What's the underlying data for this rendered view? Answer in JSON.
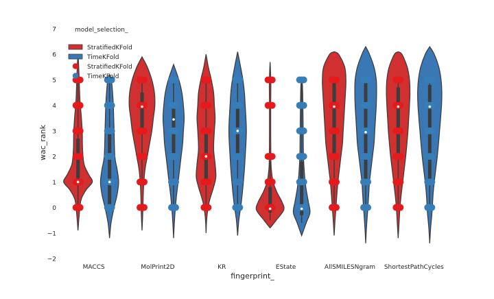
{
  "chart_data": {
    "type": "violin",
    "xlabel": "fingerprint_",
    "ylabel": "wac_rank",
    "ylim": [
      -2,
      7
    ],
    "yticks": [
      -2,
      -1,
      0,
      1,
      2,
      3,
      4,
      5,
      6,
      7
    ],
    "grid": false,
    "legend_position": "top-left",
    "legend": {
      "title": "model_selection_",
      "entries": [
        {
          "label": "StratifiedKFold",
          "marker": "patch",
          "color": "#d0302f"
        },
        {
          "label": "TimeKFold",
          "marker": "patch",
          "color": "#3a78b5"
        },
        {
          "label": "StratifiedKFold",
          "marker": "dot",
          "color": "#e41a1c"
        },
        {
          "label": "TimeKFold",
          "marker": "dot",
          "color": "#377eb8"
        }
      ]
    },
    "categories": [
      "MACCS",
      "MolPrint2D",
      "KR",
      "EState",
      "AllSMILESNgram",
      "ShortestPathCycles"
    ],
    "series": [
      {
        "name": "StratifiedKFold",
        "fill": "#d0302f",
        "point_color": "#e41a1c",
        "violins": [
          {
            "min": -0.9,
            "max": 6.0,
            "q1": 1.0,
            "median": 1.0,
            "q3": 2.7,
            "whisker_low": 0,
            "whisker_high": 5,
            "profile": [
              [
                -0.9,
                0
              ],
              [
                -0.3,
                0.08
              ],
              [
                0.3,
                0.2
              ],
              [
                0.7,
                0.55
              ],
              [
                1.0,
                0.95
              ],
              [
                1.3,
                0.7
              ],
              [
                1.7,
                0.4
              ],
              [
                2.3,
                0.3
              ],
              [
                3.0,
                0.28
              ],
              [
                3.7,
                0.2
              ],
              [
                4.2,
                0.13
              ],
              [
                5.0,
                0.08
              ],
              [
                5.6,
                0.04
              ],
              [
                6.0,
                0
              ]
            ],
            "points": [
              0,
              1,
              2,
              3,
              4,
              5
            ]
          },
          {
            "min": -0.9,
            "max": 5.9,
            "q1": 3.0,
            "median": 3.95,
            "q3": 4.5,
            "whisker_low": 1,
            "whisker_high": 5,
            "profile": [
              [
                -0.9,
                0
              ],
              [
                -0.2,
                0.05
              ],
              [
                0.5,
                0.08
              ],
              [
                1.0,
                0.12
              ],
              [
                1.5,
                0.2
              ],
              [
                2.0,
                0.35
              ],
              [
                2.5,
                0.5
              ],
              [
                3.0,
                0.65
              ],
              [
                3.5,
                0.75
              ],
              [
                4.0,
                0.85
              ],
              [
                4.5,
                0.82
              ],
              [
                5.0,
                0.65
              ],
              [
                5.5,
                0.35
              ],
              [
                5.9,
                0
              ]
            ],
            "points": [
              0,
              1,
              2,
              3,
              4,
              5
            ]
          },
          {
            "min": -1.0,
            "max": 6.0,
            "q1": 1.0,
            "median": 2.0,
            "q3": 3.0,
            "whisker_low": 0,
            "whisker_high": 5,
            "profile": [
              [
                -1.0,
                0
              ],
              [
                -0.4,
                0.05
              ],
              [
                0.2,
                0.2
              ],
              [
                0.8,
                0.5
              ],
              [
                1.2,
                0.65
              ],
              [
                1.7,
                0.6
              ],
              [
                2.3,
                0.5
              ],
              [
                3.0,
                0.55
              ],
              [
                3.5,
                0.6
              ],
              [
                4.0,
                0.55
              ],
              [
                4.5,
                0.5
              ],
              [
                5.0,
                0.35
              ],
              [
                5.5,
                0.15
              ],
              [
                6.0,
                0
              ]
            ],
            "points": [
              0,
              1,
              2,
              3,
              4,
              5
            ]
          },
          {
            "min": -0.8,
            "max": 5.7,
            "q1": -0.2,
            "median": -0.05,
            "q3": 0.8,
            "whisker_low": -0.5,
            "whisker_high": 1.8,
            "profile": [
              [
                -0.8,
                0
              ],
              [
                -0.5,
                0.4
              ],
              [
                -0.1,
                0.9
              ],
              [
                0.2,
                0.8
              ],
              [
                0.6,
                0.45
              ],
              [
                1.0,
                0.2
              ],
              [
                1.5,
                0.08
              ],
              [
                2.0,
                0.05
              ],
              [
                3.0,
                0.04
              ],
              [
                4.0,
                0.04
              ],
              [
                4.8,
                0.05
              ],
              [
                5.3,
                0.03
              ],
              [
                5.7,
                0
              ]
            ],
            "points": [
              0,
              1,
              2,
              4,
              5
            ]
          },
          {
            "min": -1.1,
            "max": 6.1,
            "q1": 2.0,
            "median": 3.95,
            "q3": 5.0,
            "whisker_low": 0,
            "whisker_high": 5,
            "profile": [
              [
                -1.1,
                0
              ],
              [
                -0.5,
                0.06
              ],
              [
                0,
                0.12
              ],
              [
                0.5,
                0.18
              ],
              [
                1.0,
                0.25
              ],
              [
                1.5,
                0.35
              ],
              [
                2.0,
                0.45
              ],
              [
                2.5,
                0.55
              ],
              [
                3.0,
                0.6
              ],
              [
                3.5,
                0.65
              ],
              [
                4.0,
                0.7
              ],
              [
                4.5,
                0.75
              ],
              [
                5.0,
                0.78
              ],
              [
                5.5,
                0.7
              ],
              [
                6.0,
                0.3
              ],
              [
                6.1,
                0
              ]
            ],
            "points": [
              0,
              1,
              2,
              3,
              4,
              5
            ]
          },
          {
            "min": -1.2,
            "max": 6.1,
            "q1": 2.0,
            "median": 3.95,
            "q3": 4.7,
            "whisker_low": 0,
            "whisker_high": 5,
            "profile": [
              [
                -1.2,
                0
              ],
              [
                -0.6,
                0.06
              ],
              [
                0,
                0.12
              ],
              [
                0.5,
                0.2
              ],
              [
                1.0,
                0.3
              ],
              [
                1.5,
                0.4
              ],
              [
                2.0,
                0.5
              ],
              [
                2.5,
                0.58
              ],
              [
                3.0,
                0.65
              ],
              [
                3.5,
                0.7
              ],
              [
                4.0,
                0.75
              ],
              [
                4.5,
                0.78
              ],
              [
                5.0,
                0.75
              ],
              [
                5.5,
                0.6
              ],
              [
                6.0,
                0.25
              ],
              [
                6.1,
                0
              ]
            ],
            "points": [
              0,
              1,
              2,
              3,
              4,
              5
            ]
          }
        ]
      },
      {
        "name": "TimeKFold",
        "fill": "#3a78b5",
        "point_color": "#377eb8",
        "violins": [
          {
            "min": -1.2,
            "max": 5.2,
            "q1": 0.0,
            "median": 1.0,
            "q3": 3.0,
            "whisker_low": 0,
            "whisker_high": 5,
            "profile": [
              [
                -1.2,
                0
              ],
              [
                -0.6,
                0.1
              ],
              [
                0,
                0.3
              ],
              [
                0.5,
                0.5
              ],
              [
                1.0,
                0.6
              ],
              [
                1.5,
                0.5
              ],
              [
                2.0,
                0.35
              ],
              [
                3.0,
                0.3
              ],
              [
                4.0,
                0.25
              ],
              [
                4.5,
                0.2
              ],
              [
                5.0,
                0.12
              ],
              [
                5.2,
                0
              ]
            ],
            "points": [
              0,
              1,
              2,
              3,
              4,
              5
            ]
          },
          {
            "min": -1.2,
            "max": 5.6,
            "q1": 2.0,
            "median": 3.45,
            "q3": 4.0,
            "whisker_low": 0,
            "whisker_high": 5,
            "profile": [
              [
                -1.2,
                0
              ],
              [
                -0.6,
                0.05
              ],
              [
                0,
                0.12
              ],
              [
                0.5,
                0.2
              ],
              [
                1.0,
                0.3
              ],
              [
                1.5,
                0.4
              ],
              [
                2.0,
                0.5
              ],
              [
                2.5,
                0.6
              ],
              [
                3.0,
                0.65
              ],
              [
                3.5,
                0.7
              ],
              [
                4.0,
                0.65
              ],
              [
                4.5,
                0.55
              ],
              [
                5.0,
                0.35
              ],
              [
                5.6,
                0
              ]
            ],
            "points": [
              0,
              1,
              2,
              3,
              4,
              5
            ]
          },
          {
            "min": -1.1,
            "max": 6.1,
            "q1": 2.0,
            "median": 3.0,
            "q3": 4.0,
            "whisker_low": 0,
            "whisker_high": 5,
            "profile": [
              [
                -1.1,
                0
              ],
              [
                -0.5,
                0.08
              ],
              [
                0,
                0.2
              ],
              [
                0.5,
                0.3
              ],
              [
                1.0,
                0.38
              ],
              [
                1.5,
                0.45
              ],
              [
                2.0,
                0.5
              ],
              [
                2.5,
                0.55
              ],
              [
                3.0,
                0.58
              ],
              [
                3.5,
                0.55
              ],
              [
                4.0,
                0.5
              ],
              [
                4.5,
                0.45
              ],
              [
                5.0,
                0.35
              ],
              [
                5.5,
                0.2
              ],
              [
                6.1,
                0
              ]
            ],
            "points": [
              0,
              1,
              2,
              3,
              4,
              5
            ]
          },
          {
            "min": -1.1,
            "max": 5.0,
            "q1": -0.3,
            "median": -0.05,
            "q3": 1.8,
            "whisker_low": -0.6,
            "whisker_high": 5,
            "profile": [
              [
                -1.1,
                0
              ],
              [
                -0.6,
                0.3
              ],
              [
                -0.2,
                0.55
              ],
              [
                0.2,
                0.45
              ],
              [
                0.7,
                0.3
              ],
              [
                1.2,
                0.2
              ],
              [
                2.0,
                0.12
              ],
              [
                3.0,
                0.1
              ],
              [
                4.0,
                0.08
              ],
              [
                4.8,
                0.05
              ],
              [
                5.0,
                0
              ]
            ],
            "points": [
              0,
              1,
              2,
              3,
              4,
              5
            ]
          },
          {
            "min": -1.4,
            "max": 6.3,
            "q1": 1.0,
            "median": 2.95,
            "q3": 5.0,
            "whisker_low": 0,
            "whisker_high": 5,
            "profile": [
              [
                -1.4,
                0
              ],
              [
                -0.8,
                0.05
              ],
              [
                -0.2,
                0.12
              ],
              [
                0.5,
                0.2
              ],
              [
                1.0,
                0.25
              ],
              [
                1.5,
                0.35
              ],
              [
                2.0,
                0.45
              ],
              [
                2.5,
                0.55
              ],
              [
                3.0,
                0.6
              ],
              [
                3.5,
                0.65
              ],
              [
                4.0,
                0.7
              ],
              [
                4.5,
                0.72
              ],
              [
                5.0,
                0.7
              ],
              [
                5.5,
                0.55
              ],
              [
                6.0,
                0.25
              ],
              [
                6.3,
                0
              ]
            ],
            "points": [
              0,
              1,
              2,
              3,
              4,
              5
            ]
          },
          {
            "min": -1.4,
            "max": 6.3,
            "q1": 1.0,
            "median": 3.95,
            "q3": 4.8,
            "whisker_low": 0,
            "whisker_high": 5,
            "profile": [
              [
                -1.4,
                0
              ],
              [
                -0.8,
                0.06
              ],
              [
                -0.2,
                0.15
              ],
              [
                0.5,
                0.22
              ],
              [
                1.0,
                0.3
              ],
              [
                1.5,
                0.4
              ],
              [
                2.0,
                0.5
              ],
              [
                2.5,
                0.58
              ],
              [
                3.0,
                0.65
              ],
              [
                3.5,
                0.72
              ],
              [
                4.0,
                0.78
              ],
              [
                4.5,
                0.8
              ],
              [
                5.0,
                0.75
              ],
              [
                5.5,
                0.6
              ],
              [
                6.0,
                0.3
              ],
              [
                6.3,
                0
              ]
            ],
            "points": [
              0,
              1,
              2,
              3,
              4,
              5
            ]
          }
        ]
      }
    ]
  }
}
